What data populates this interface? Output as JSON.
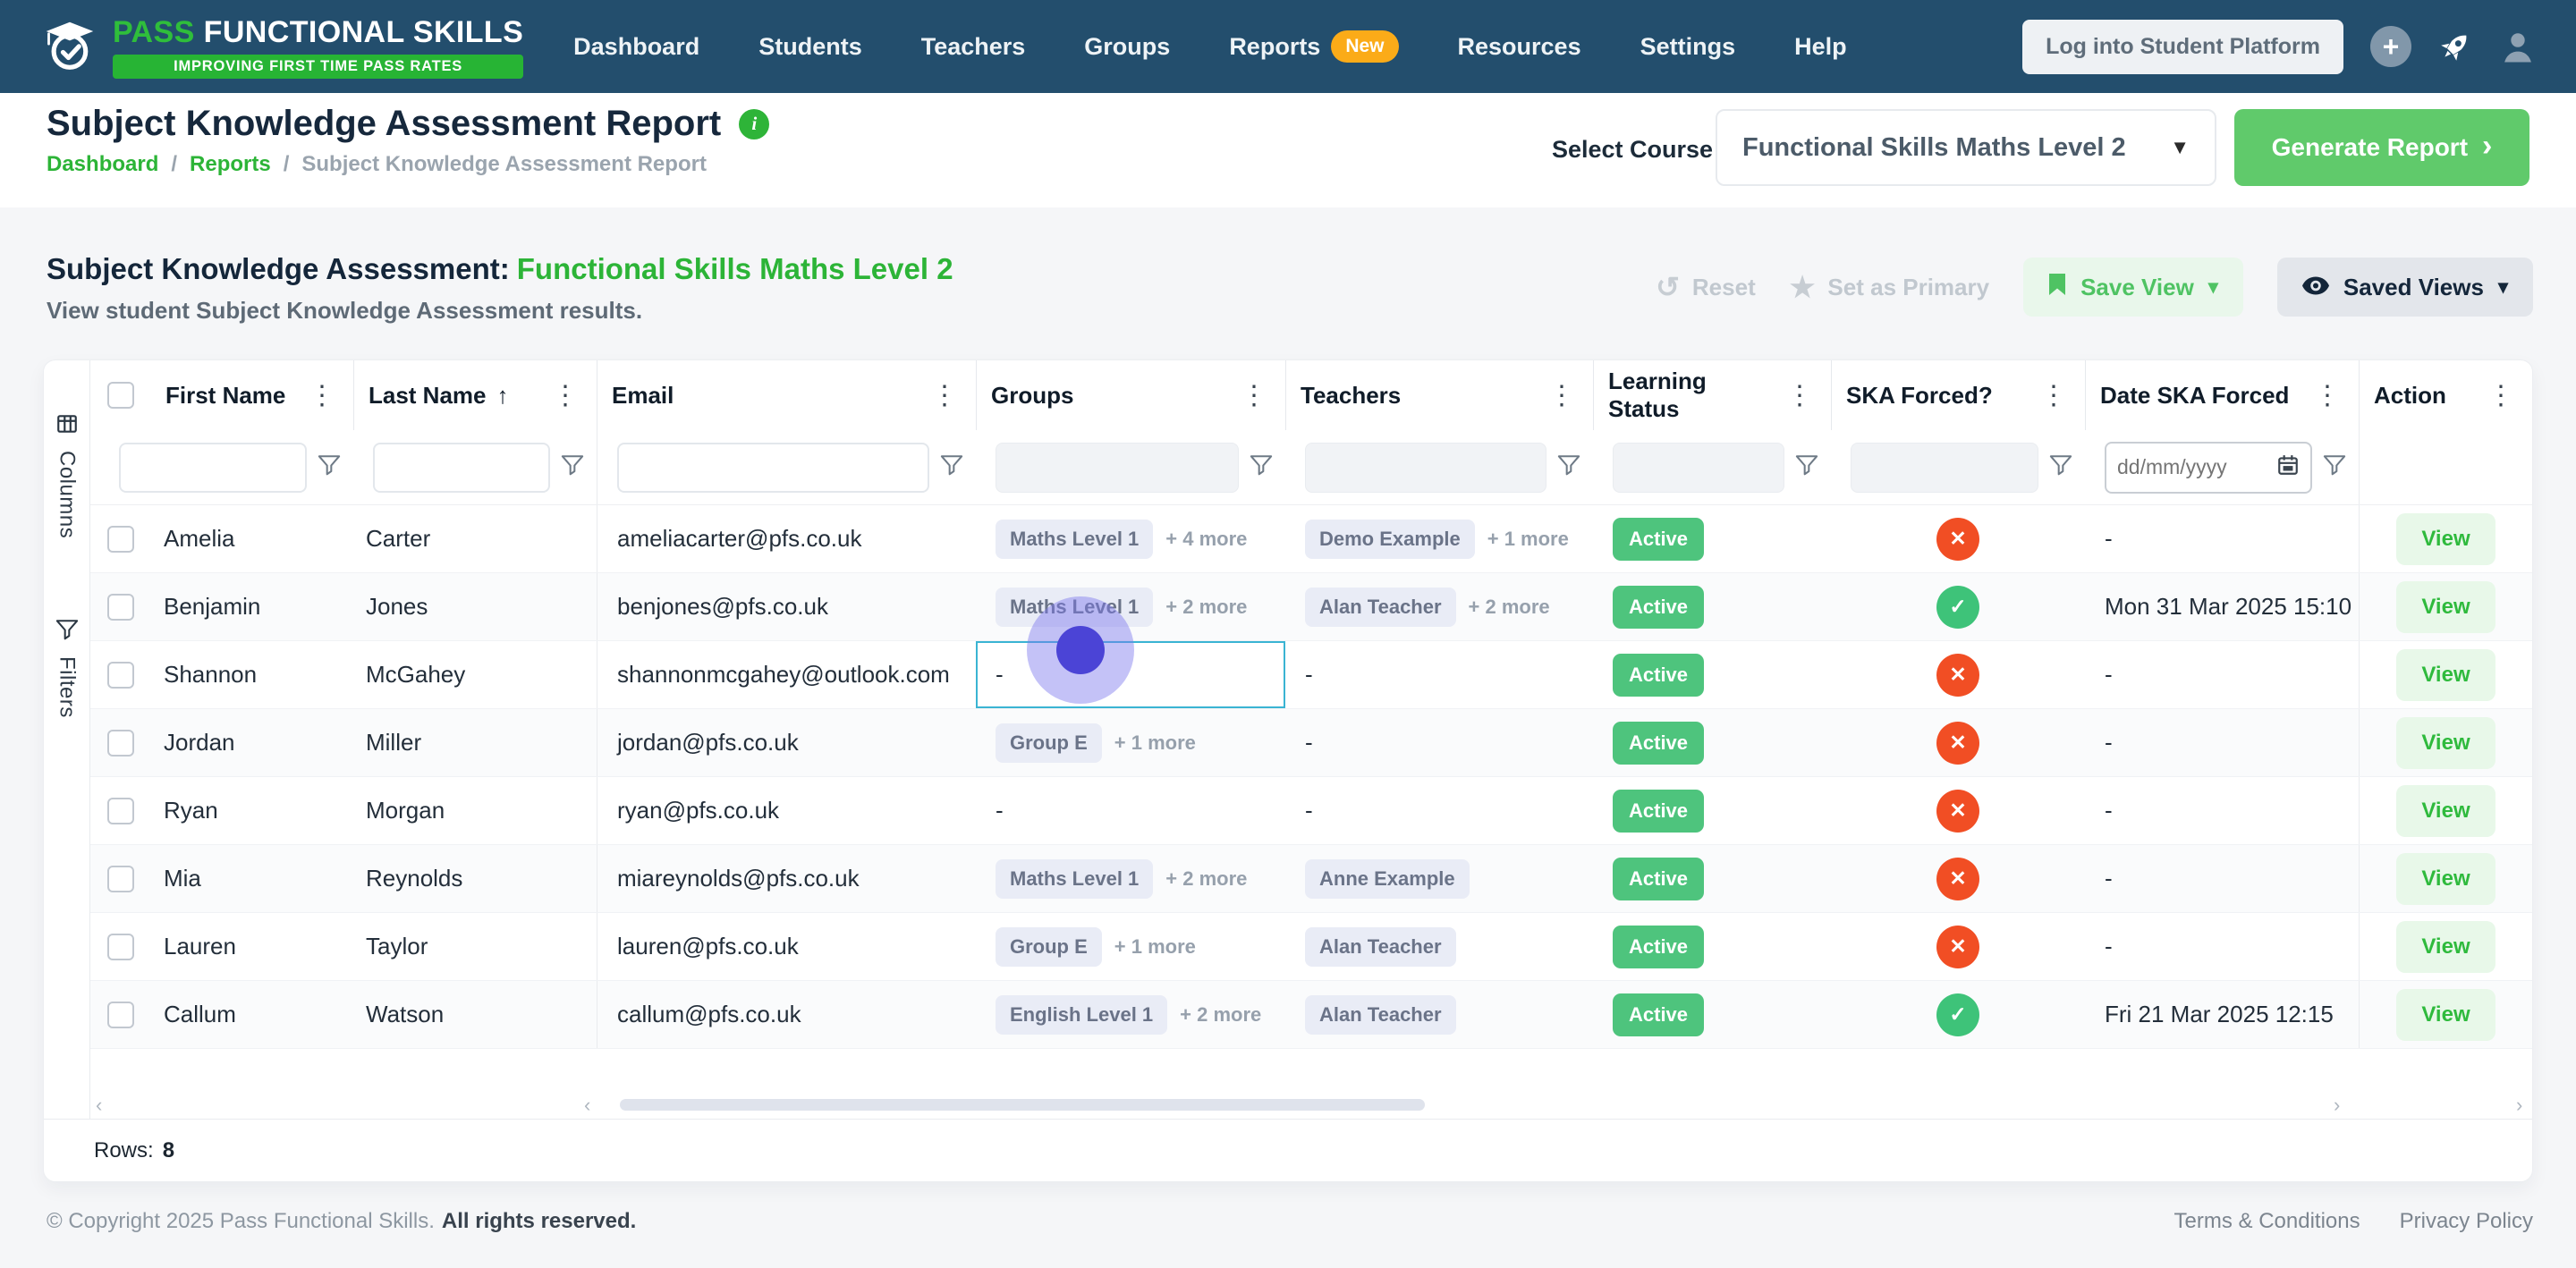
{
  "colors": {
    "nav_bg": "#234e6d",
    "brand_green": "#2fbe3b",
    "tagline_green": "#27b434",
    "badge_orange": "#fbab18",
    "accent_green": "#2cb437",
    "button_green": "#60ca6b",
    "active_pill_green": "#4ec47d",
    "success_green": "#3ec379",
    "error_red": "#f14e24",
    "view_green": "#2fba3d",
    "focus_blue": "#3ab4d3",
    "cursor_purple": "#4b44d6"
  },
  "icons": {
    "kebab": "⋮",
    "sort_asc": "↑",
    "caret_down": "▾",
    "select_caret": "▼",
    "chevron_right": "›",
    "reset": "↺",
    "star": "★",
    "plus": "+",
    "check": "✓",
    "cross": "✕",
    "scroll_left": "‹",
    "scroll_right": "›",
    "info": "i"
  },
  "nav": {
    "brand": {
      "name_green": "PASS",
      "name_white": "FUNCTIONAL SKILLS",
      "tagline": "IMPROVING FIRST TIME PASS RATES"
    },
    "items": [
      {
        "label": "Dashboard"
      },
      {
        "label": "Students"
      },
      {
        "label": "Teachers"
      },
      {
        "label": "Groups"
      },
      {
        "label": "Reports",
        "badge": "New"
      },
      {
        "label": "Resources"
      },
      {
        "label": "Settings"
      },
      {
        "label": "Help"
      }
    ],
    "student_platform_button": "Log into Student Platform"
  },
  "header": {
    "title": "Subject Knowledge Assessment Report",
    "breadcrumb": [
      "Dashboard",
      "Reports",
      "Subject Knowledge Assessment Report"
    ],
    "breadcrumb_separator": "/",
    "select_course_label": "Select Course",
    "required_mark": "*",
    "course_value": "Functional Skills Maths Level 2",
    "generate_label": "Generate Report"
  },
  "section": {
    "title_prefix": "Subject Knowledge Assessment:",
    "title_course": "Functional Skills Maths Level 2",
    "subtitle": "View student Subject Knowledge Assessment results.",
    "reset_label": "Reset",
    "set_primary_label": "Set as Primary",
    "save_view_label": "Save View",
    "saved_views_label": "Saved Views"
  },
  "table": {
    "rail": [
      {
        "label": "Columns"
      },
      {
        "label": "Filters"
      }
    ],
    "columns": [
      {
        "label": "First Name",
        "filter": "text"
      },
      {
        "label": "Last Name",
        "filter": "text",
        "sorted": "asc"
      },
      {
        "label": "Email",
        "filter": "text"
      },
      {
        "label": "Groups",
        "filter": "select"
      },
      {
        "label": "Teachers",
        "filter": "select"
      },
      {
        "label": "Learning Status",
        "filter": "select"
      },
      {
        "label": "SKA Forced?",
        "filter": "select"
      },
      {
        "label": "Date SKA Forced",
        "filter": "date",
        "placeholder": "dd/mm/yyyy"
      },
      {
        "label": "Action",
        "filter": "none"
      }
    ],
    "rows": [
      {
        "first": "Amelia",
        "last": "Carter",
        "email": "ameliacarter@pfs.co.uk",
        "groups": {
          "pill": "Maths Level 1",
          "more": "+ 4 more"
        },
        "teachers": {
          "pill": "Demo Example",
          "more": "+ 1 more"
        },
        "learning_status": "Active",
        "ska_forced": "no",
        "date_ska_forced": "-"
      },
      {
        "first": "Benjamin",
        "last": "Jones",
        "email": "benjones@pfs.co.uk",
        "groups": {
          "pill": "Maths Level 1",
          "more": "+ 2 more"
        },
        "teachers": {
          "pill": "Alan Teacher",
          "more": "+ 2 more"
        },
        "learning_status": "Active",
        "ska_forced": "yes",
        "date_ska_forced": "Mon 31 Mar 2025 15:10"
      },
      {
        "first": "Shannon",
        "last": "McGahey",
        "email": "shannonmcgahey@outlook.com",
        "groups": {
          "text": "-"
        },
        "focused_cell": "groups",
        "teachers": {
          "text": "-"
        },
        "learning_status": "Active",
        "ska_forced": "no",
        "date_ska_forced": "-"
      },
      {
        "first": "Jordan",
        "last": "Miller",
        "email": "jordan@pfs.co.uk",
        "groups": {
          "pill": "Group E",
          "more": "+ 1 more"
        },
        "teachers": {
          "text": "-"
        },
        "learning_status": "Active",
        "ska_forced": "no",
        "date_ska_forced": "-"
      },
      {
        "first": "Ryan",
        "last": "Morgan",
        "email": "ryan@pfs.co.uk",
        "groups": {
          "text": "-"
        },
        "teachers": {
          "text": "-"
        },
        "learning_status": "Active",
        "ska_forced": "no",
        "date_ska_forced": "-"
      },
      {
        "first": "Mia",
        "last": "Reynolds",
        "email": "miareynolds@pfs.co.uk",
        "groups": {
          "pill": "Maths Level 1",
          "more": "+ 2 more"
        },
        "teachers": {
          "pill": "Anne Example"
        },
        "learning_status": "Active",
        "ska_forced": "no",
        "date_ska_forced": "-"
      },
      {
        "first": "Lauren",
        "last": "Taylor",
        "email": "lauren@pfs.co.uk",
        "groups": {
          "pill": "Group E",
          "more": "+ 1 more"
        },
        "teachers": {
          "pill": "Alan Teacher"
        },
        "learning_status": "Active",
        "ska_forced": "no",
        "date_ska_forced": "-"
      },
      {
        "first": "Callum",
        "last": "Watson",
        "email": "callum@pfs.co.uk",
        "groups": {
          "pill": "English Level 1",
          "more": "+ 2 more"
        },
        "teachers": {
          "pill": "Alan Teacher"
        },
        "learning_status": "Active",
        "ska_forced": "yes",
        "date_ska_forced": "Fri 21 Mar 2025 12:15"
      }
    ],
    "view_label": "View",
    "rows_footer": {
      "label": "Rows:",
      "count": "8"
    }
  },
  "footer": {
    "copyright": "© Copyright 2025 Pass Functional Skills.",
    "rights": "All rights reserved.",
    "links": [
      "Terms & Conditions",
      "Privacy Policy"
    ]
  }
}
